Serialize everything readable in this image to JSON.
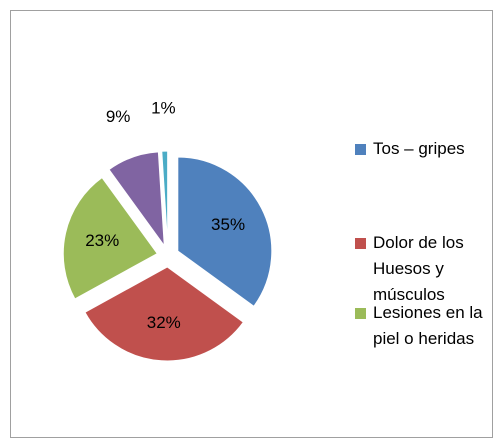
{
  "chart_data": {
    "type": "pie",
    "categories": [
      "Tos – gripes",
      "Dolor de los Huesos y músculos",
      "Lesiones en la piel o heridas",
      null,
      null
    ],
    "values": [
      35,
      32,
      23,
      9,
      1
    ],
    "value_labels": [
      "35%",
      "32%",
      "23%",
      "9%",
      "1%"
    ],
    "colors": [
      "#4f81bd",
      "#c0504d",
      "#9bbb59",
      "#8064a2",
      "#4bacc6"
    ],
    "legend": "right"
  }
}
